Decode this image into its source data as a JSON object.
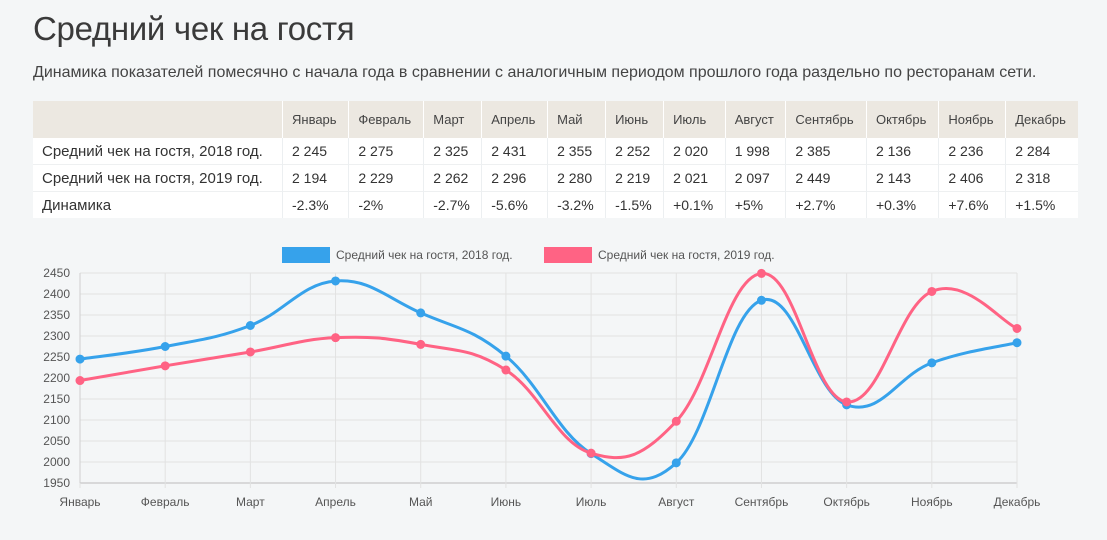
{
  "page": {
    "title": "Средний чек на гостя",
    "subtitle": "Динамика показателей помесячно с начала года в сравнении с аналогичным периодом прошлого года раздельно по ресторанам сети."
  },
  "table": {
    "months": [
      "Январь",
      "Февраль",
      "Март",
      "Апрель",
      "Май",
      "Июнь",
      "Июль",
      "Август",
      "Сентябрь",
      "Октябрь",
      "Ноябрь",
      "Декабрь"
    ],
    "rows": [
      {
        "label": "Средний чек на гостя, 2018 год.",
        "cells": [
          "2 245",
          "2 275",
          "2 325",
          "2 431",
          "2 355",
          "2 252",
          "2 020",
          "1 998",
          "2 385",
          "2 136",
          "2 236",
          "2 284"
        ]
      },
      {
        "label": "Средний чек на гостя, 2019 год.",
        "cells": [
          "2 194",
          "2 229",
          "2 262",
          "2 296",
          "2 280",
          "2 219",
          "2 021",
          "2 097",
          "2 449",
          "2 143",
          "2 406",
          "2 318"
        ]
      },
      {
        "label": "Динамика",
        "cells": [
          "-2.3%",
          "-2%",
          "-2.7%",
          "-5.6%",
          "-3.2%",
          "-1.5%",
          "+0.1%",
          "+5%",
          "+2.7%",
          "+0.3%",
          "+7.6%",
          "+1.5%"
        ]
      }
    ]
  },
  "colors": {
    "series2018": "#36a2eb",
    "series2019": "#ff6384",
    "negative": "#c0392b",
    "positive": "#3a9a2c"
  },
  "chart_data": {
    "type": "line",
    "categories": [
      "Январь",
      "Февраль",
      "Март",
      "Апрель",
      "Май",
      "Июнь",
      "Июль",
      "Август",
      "Сентябрь",
      "Октябрь",
      "Ноябрь",
      "Декабрь"
    ],
    "series": [
      {
        "name": "Средний чек на гостя, 2018 год.",
        "values": [
          2245,
          2275,
          2325,
          2431,
          2355,
          2252,
          2020,
          1998,
          2385,
          2136,
          2236,
          2284
        ]
      },
      {
        "name": "Средний чек на гостя, 2019 год.",
        "values": [
          2194,
          2229,
          2262,
          2296,
          2280,
          2219,
          2021,
          2097,
          2449,
          2143,
          2406,
          2318
        ]
      }
    ],
    "ylim": [
      1950,
      2450
    ],
    "yticks": [
      1950,
      2000,
      2050,
      2100,
      2150,
      2200,
      2250,
      2300,
      2350,
      2400,
      2450
    ],
    "grid": true,
    "legend": "top",
    "smooth": true
  }
}
